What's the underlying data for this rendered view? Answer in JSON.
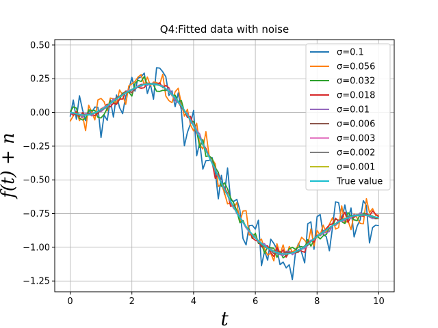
{
  "chart_data": {
    "type": "line",
    "title": "Q4:Fitted data with noise",
    "xlabel": "t",
    "ylabel": "f(t) + n",
    "xlim": [
      -0.5,
      10.5
    ],
    "ylim": [
      -1.33,
      0.54
    ],
    "xticks": [
      0,
      2,
      4,
      6,
      8,
      10
    ],
    "xtick_labels": [
      "0",
      "2",
      "4",
      "6",
      "8",
      "10"
    ],
    "yticks": [
      0.5,
      0.25,
      0.0,
      -0.25,
      -0.5,
      -0.75,
      -1.0,
      -1.25
    ],
    "ytick_labels": [
      "0.50",
      "0.25",
      "0.00",
      "−0.25",
      "−0.50",
      "−0.75",
      "−1.00",
      "−1.25"
    ],
    "grid": true,
    "legend_position": "upper right",
    "true_curve": {
      "x": [
        0,
        0.5,
        1,
        1.5,
        2,
        2.5,
        3,
        3.5,
        4,
        4.5,
        5,
        5.5,
        6,
        6.5,
        7,
        7.5,
        8,
        8.5,
        9,
        9.5,
        10
      ],
      "y": [
        0.0,
        -0.02,
        0.02,
        0.1,
        0.17,
        0.21,
        0.19,
        0.08,
        -0.1,
        -0.33,
        -0.57,
        -0.78,
        -0.93,
        -1.02,
        -1.05,
        -1.01,
        -0.92,
        -0.84,
        -0.78,
        -0.76,
        -0.78
      ]
    },
    "series": [
      {
        "name": "σ=0.1",
        "color": "#1f77b4",
        "noise": 0.1
      },
      {
        "name": "σ=0.056",
        "color": "#ff7f0e",
        "noise": 0.056
      },
      {
        "name": "σ=0.032",
        "color": "#2ca02c",
        "noise": 0.032
      },
      {
        "name": "σ=0.018",
        "color": "#d62728",
        "noise": 0.018
      },
      {
        "name": "σ=0.01",
        "color": "#9467bd",
        "noise": 0.01
      },
      {
        "name": "σ=0.006",
        "color": "#8c564b",
        "noise": 0.006
      },
      {
        "name": "σ=0.003",
        "color": "#e377c2",
        "noise": 0.003
      },
      {
        "name": "σ=0.002",
        "color": "#7f7f7f",
        "noise": 0.002
      },
      {
        "name": "σ=0.001",
        "color": "#bcbd22",
        "noise": 0.001
      },
      {
        "name": "True value",
        "color": "#17becf",
        "noise": 0
      }
    ]
  }
}
